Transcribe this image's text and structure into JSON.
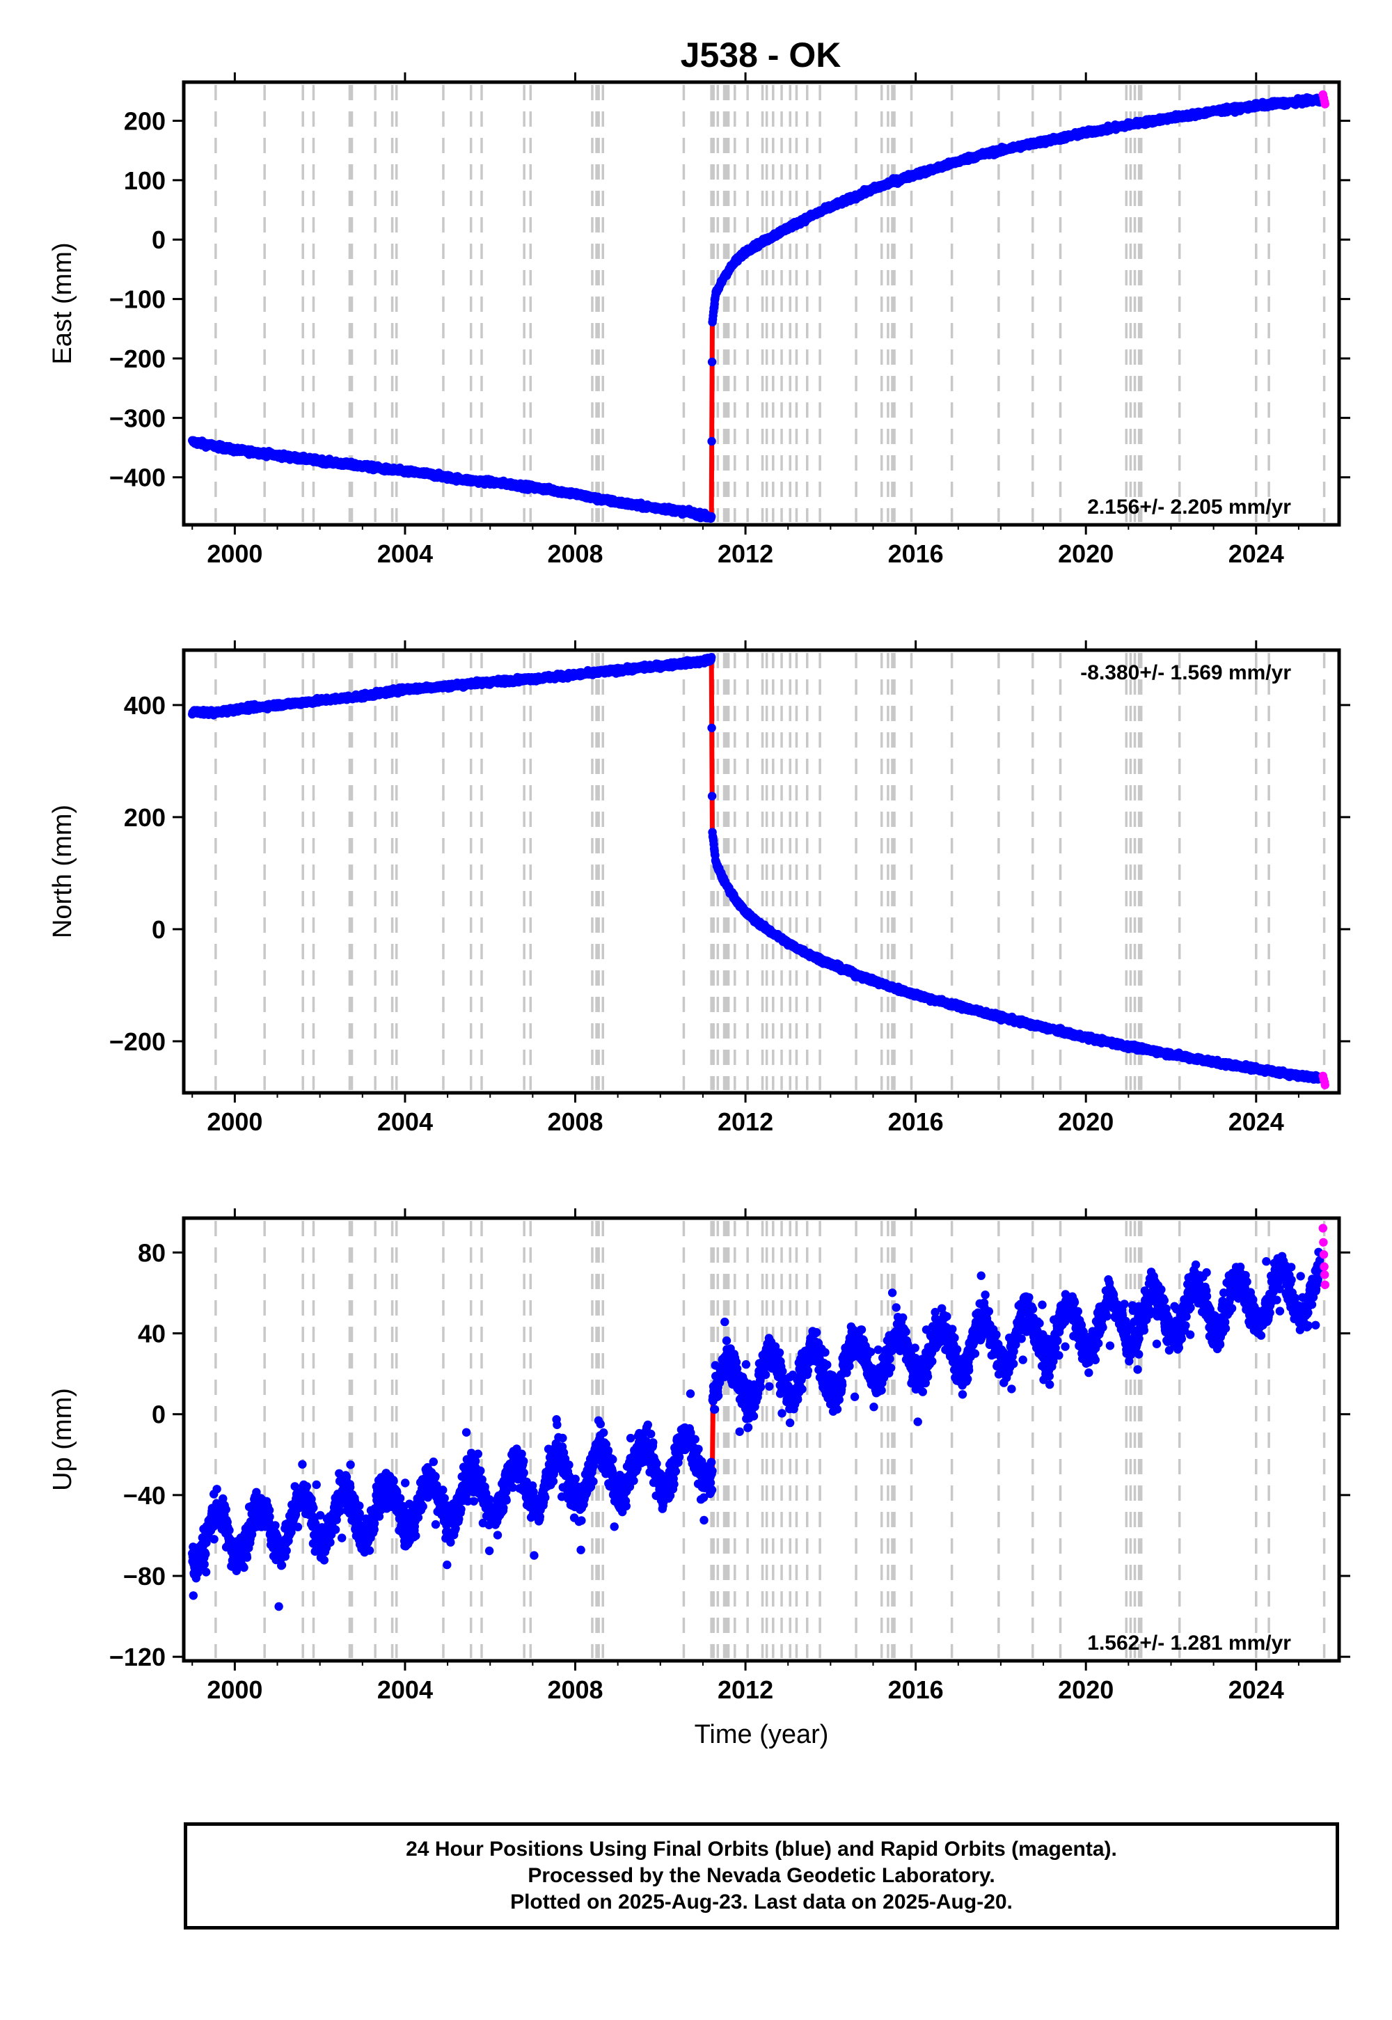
{
  "title": "J538 - OK",
  "caption": {
    "lines": [
      "24 Hour Positions Using Final Orbits (blue) and Rapid Orbits (magenta).",
      "Processed by the Nevada Geodetic Laboratory.",
      "Plotted on 2025-Aug-23. Last data on 2025-Aug-20."
    ]
  },
  "colors": {
    "final_orbits": "#0000ff",
    "rapid_orbits": "#ff00ff",
    "model": "#ff0000",
    "event_lines": "#c8c8c8"
  },
  "chart_data": [
    {
      "type": "scatter",
      "panel": "East",
      "title": "J538 - OK",
      "xlabel": "",
      "ylabel": "East (mm)",
      "xlim": [
        1998.8,
        2025.95
      ],
      "ylim": [
        -480,
        265
      ],
      "xticks": [
        2000,
        2004,
        2008,
        2012,
        2016,
        2020,
        2024
      ],
      "yticks": [
        200,
        100,
        0,
        -100,
        -200,
        -300,
        -400
      ],
      "annotation": "2.156+/- 2.205 mm/yr",
      "annotation_position": "bottom-right",
      "grid": false,
      "event_lines": [
        1999.55,
        2000.7,
        2001.6,
        2001.85,
        2002.7,
        2002.75,
        2003.3,
        2003.7,
        2003.8,
        2004.9,
        2005.55,
        2005.8,
        2006.8,
        2006.95,
        2008.4,
        2008.5,
        2008.55,
        2008.65,
        2010.55,
        2011.2,
        2011.25,
        2011.35,
        2011.5,
        2011.55,
        2011.6,
        2011.75,
        2012.05,
        2012.4,
        2012.5,
        2012.65,
        2012.85,
        2013.05,
        2013.2,
        2013.45,
        2013.75,
        2014.6,
        2015.2,
        2015.35,
        2015.45,
        2015.5,
        2015.9,
        2016.85,
        2017.95,
        2018.75,
        2019.4,
        2020.95,
        2021.05,
        2021.15,
        2021.25,
        2021.3,
        2022.2,
        2024.0,
        2024.3,
        2025.6
      ],
      "series": [
        {
          "name": "Final Orbits",
          "color": "#0000ff",
          "x": [
            1999.0,
            1999.5,
            2000.0,
            2000.5,
            2001.0,
            2001.5,
            2002.0,
            2002.5,
            2003.0,
            2003.5,
            2004.0,
            2004.5,
            2005.0,
            2005.5,
            2006.0,
            2006.5,
            2007.0,
            2007.5,
            2008.0,
            2008.5,
            2009.0,
            2009.5,
            2010.0,
            2010.5,
            2011.0,
            2011.2,
            2011.22,
            2011.3,
            2011.5,
            2011.75,
            2012.0,
            2012.5,
            2013.0,
            2013.5,
            2014.0,
            2014.5,
            2015.0,
            2015.5,
            2016.0,
            2016.5,
            2017.0,
            2017.5,
            2018.0,
            2018.5,
            2019.0,
            2019.5,
            2020.0,
            2020.5,
            2021.0,
            2021.5,
            2022.0,
            2022.5,
            2023.0,
            2023.5,
            2024.0,
            2024.5,
            2025.0,
            2025.5
          ],
          "y": [
            -340,
            -347,
            -354,
            -358,
            -363,
            -368,
            -372,
            -377,
            -381,
            -386,
            -390,
            -394,
            -400,
            -405,
            -408,
            -412,
            -417,
            -422,
            -428,
            -436,
            -442,
            -448,
            -452,
            -457,
            -464,
            -468,
            -140,
            -92,
            -62,
            -38,
            -20,
            0,
            20,
            38,
            55,
            70,
            85,
            98,
            110,
            120,
            132,
            142,
            150,
            158,
            165,
            172,
            180,
            186,
            193,
            199,
            205,
            210,
            216,
            220,
            225,
            229,
            232,
            235
          ]
        },
        {
          "name": "Rapid Orbits",
          "color": "#ff00ff",
          "x": [
            2025.57,
            2025.59,
            2025.61,
            2025.62
          ],
          "y": [
            244,
            238,
            232,
            228
          ]
        },
        {
          "name": "Model",
          "color": "#ff0000",
          "x": [
            1999.0,
            2000.0,
            2001.0,
            2002.0,
            2003.0,
            2004.0,
            2005.0,
            2006.0,
            2007.0,
            2008.0,
            2009.0,
            2010.0,
            2011.0,
            2011.2,
            2011.22,
            2011.3,
            2011.5,
            2011.75,
            2012.0,
            2012.5,
            2013.0,
            2013.5,
            2014.0,
            2014.5,
            2015.0,
            2016.0,
            2017.0,
            2018.0,
            2019.0,
            2020.0,
            2021.0,
            2022.0,
            2023.0,
            2024.0,
            2025.0,
            2025.6
          ],
          "y": [
            -340,
            -354,
            -363,
            -372,
            -381,
            -390,
            -400,
            -408,
            -417,
            -428,
            -442,
            -452,
            -464,
            -468,
            -140,
            -92,
            -62,
            -38,
            -20,
            0,
            20,
            38,
            55,
            70,
            85,
            110,
            132,
            150,
            165,
            180,
            193,
            205,
            216,
            225,
            232,
            236
          ]
        }
      ]
    },
    {
      "type": "scatter",
      "panel": "North",
      "title": "",
      "xlabel": "",
      "ylabel": "North (mm)",
      "xlim": [
        1998.8,
        2025.95
      ],
      "ylim": [
        -292,
        498
      ],
      "xticks": [
        2000,
        2004,
        2008,
        2012,
        2016,
        2020,
        2024
      ],
      "yticks": [
        400,
        200,
        0,
        -200
      ],
      "annotation": "-8.380+/- 1.569 mm/yr",
      "annotation_position": "top-right",
      "grid": false,
      "event_lines": [
        1999.55,
        2000.7,
        2001.6,
        2001.85,
        2002.7,
        2002.75,
        2003.3,
        2003.7,
        2003.8,
        2004.9,
        2005.55,
        2005.8,
        2006.8,
        2006.95,
        2008.4,
        2008.5,
        2008.55,
        2008.65,
        2010.55,
        2011.2,
        2011.25,
        2011.35,
        2011.5,
        2011.55,
        2011.6,
        2011.75,
        2012.05,
        2012.4,
        2012.5,
        2012.65,
        2012.85,
        2013.05,
        2013.2,
        2013.45,
        2013.75,
        2014.6,
        2015.2,
        2015.35,
        2015.45,
        2015.5,
        2015.9,
        2016.85,
        2017.95,
        2018.75,
        2019.4,
        2020.95,
        2021.05,
        2021.15,
        2021.25,
        2021.3,
        2022.2,
        2024.0,
        2024.3,
        2025.6
      ],
      "series": [
        {
          "name": "Final Orbits",
          "color": "#0000ff",
          "x": [
            1999.0,
            1999.5,
            2000.0,
            2000.5,
            2001.0,
            2001.5,
            2002.0,
            2002.5,
            2003.0,
            2003.5,
            2004.0,
            2004.5,
            2005.0,
            2005.5,
            2006.0,
            2006.5,
            2007.0,
            2007.5,
            2008.0,
            2008.5,
            2009.0,
            2009.5,
            2010.0,
            2010.5,
            2011.0,
            2011.2,
            2011.22,
            2011.3,
            2011.5,
            2011.75,
            2012.0,
            2012.5,
            2013.0,
            2013.5,
            2014.0,
            2014.5,
            2015.0,
            2015.5,
            2016.0,
            2016.5,
            2017.0,
            2017.5,
            2018.0,
            2018.5,
            2019.0,
            2019.5,
            2020.0,
            2020.5,
            2021.0,
            2021.5,
            2022.0,
            2022.5,
            2023.0,
            2023.5,
            2024.0,
            2024.5,
            2025.0,
            2025.5
          ],
          "y": [
            388,
            386,
            392,
            396,
            400,
            404,
            408,
            412,
            416,
            422,
            428,
            431,
            434,
            438,
            441,
            444,
            447,
            450,
            454,
            458,
            462,
            466,
            470,
            474,
            478,
            482,
            175,
            120,
            85,
            55,
            30,
            0,
            -25,
            -45,
            -62,
            -78,
            -92,
            -105,
            -117,
            -127,
            -137,
            -147,
            -157,
            -166,
            -175,
            -184,
            -193,
            -201,
            -209,
            -216,
            -223,
            -230,
            -237,
            -243,
            -249,
            -255,
            -261,
            -266
          ]
        },
        {
          "name": "Rapid Orbits",
          "color": "#ff00ff",
          "x": [
            2025.57,
            2025.59,
            2025.61,
            2025.62
          ],
          "y": [
            -262,
            -268,
            -273,
            -278
          ]
        },
        {
          "name": "Model",
          "color": "#ff0000",
          "x": [
            1999.0,
            2000.0,
            2001.0,
            2002.0,
            2003.0,
            2004.0,
            2005.0,
            2006.0,
            2007.0,
            2008.0,
            2009.0,
            2010.0,
            2011.0,
            2011.2,
            2011.22,
            2011.3,
            2011.5,
            2011.75,
            2012.0,
            2012.5,
            2013.0,
            2013.5,
            2014.0,
            2015.0,
            2016.0,
            2017.0,
            2018.0,
            2019.0,
            2020.0,
            2021.0,
            2022.0,
            2023.0,
            2024.0,
            2025.0,
            2025.6
          ],
          "y": [
            388,
            392,
            400,
            408,
            416,
            428,
            434,
            441,
            447,
            454,
            462,
            470,
            478,
            482,
            175,
            120,
            85,
            55,
            30,
            0,
            -25,
            -45,
            -62,
            -92,
            -117,
            -137,
            -157,
            -175,
            -193,
            -209,
            -223,
            -237,
            -249,
            -261,
            -268
          ]
        }
      ]
    },
    {
      "type": "scatter",
      "panel": "Up",
      "title": "",
      "xlabel": "Time (year)",
      "ylabel": "Up (mm)",
      "xlim": [
        1998.8,
        2025.95
      ],
      "ylim": [
        -122,
        97
      ],
      "xticks": [
        2000,
        2004,
        2008,
        2012,
        2016,
        2020,
        2024
      ],
      "yticks": [
        80,
        40,
        0,
        -40,
        -80,
        -120
      ],
      "annotation": "1.562+/- 1.281 mm/yr",
      "annotation_position": "bottom-right",
      "grid": false,
      "event_lines": [
        1999.55,
        2000.7,
        2001.6,
        2001.85,
        2002.7,
        2002.75,
        2003.3,
        2003.7,
        2003.8,
        2004.9,
        2005.55,
        2005.8,
        2006.8,
        2006.95,
        2008.4,
        2008.5,
        2008.55,
        2008.65,
        2010.55,
        2011.2,
        2011.25,
        2011.35,
        2011.5,
        2011.55,
        2011.6,
        2011.75,
        2012.05,
        2012.4,
        2012.5,
        2012.65,
        2012.85,
        2013.05,
        2013.2,
        2013.45,
        2013.75,
        2014.6,
        2015.2,
        2015.35,
        2015.45,
        2015.5,
        2015.9,
        2016.85,
        2017.95,
        2018.75,
        2019.4,
        2020.95,
        2021.05,
        2021.15,
        2021.25,
        2021.3,
        2022.2,
        2024.0,
        2024.3,
        2025.6
      ],
      "seasonal": {
        "trend_start": [
          1999.0,
          -62
        ],
        "offset_at_2011_22": 35,
        "trend_end": [
          2025.6,
          62
        ],
        "amplitude": 12,
        "scatter_mm": 12
      },
      "series": [
        {
          "name": "Final Orbits",
          "color": "#0000ff",
          "x": [
            1999.1,
            1999.6,
            2000.1,
            2000.6,
            2001.1,
            2001.6,
            2002.1,
            2002.6,
            2003.1,
            2003.6,
            2004.1,
            2004.6,
            2005.1,
            2005.6,
            2006.1,
            2006.6,
            2007.1,
            2007.6,
            2008.1,
            2008.6,
            2009.1,
            2009.6,
            2010.1,
            2010.6,
            2011.1,
            2011.4,
            2011.9,
            2012.4,
            2012.9,
            2013.4,
            2013.9,
            2014.4,
            2014.9,
            2015.4,
            2015.9,
            2016.4,
            2016.9,
            2017.4,
            2017.9,
            2018.4,
            2018.9,
            2019.4,
            2019.9,
            2020.4,
            2020.9,
            2021.4,
            2021.9,
            2022.4,
            2022.9,
            2023.4,
            2023.9,
            2024.4,
            2024.9,
            2025.5
          ],
          "y": [
            -75,
            -50,
            -72,
            -48,
            -78,
            -46,
            -74,
            -48,
            -72,
            -40,
            -60,
            -38,
            -62,
            -32,
            -58,
            -28,
            -46,
            -22,
            -44,
            -20,
            -42,
            -20,
            -40,
            -22,
            -45,
            8,
            -18,
            14,
            -20,
            20,
            -4,
            24,
            4,
            28,
            10,
            32,
            14,
            40,
            18,
            44,
            22,
            52,
            30,
            56,
            34,
            60,
            38,
            64,
            40,
            68,
            46,
            72,
            48,
            66
          ]
        },
        {
          "name": "Rapid Orbits",
          "color": "#ff00ff",
          "x": [
            2025.57,
            2025.58,
            2025.59,
            2025.6,
            2025.61,
            2025.62
          ],
          "y": [
            92,
            85,
            79,
            73,
            69,
            64
          ]
        }
      ]
    }
  ]
}
